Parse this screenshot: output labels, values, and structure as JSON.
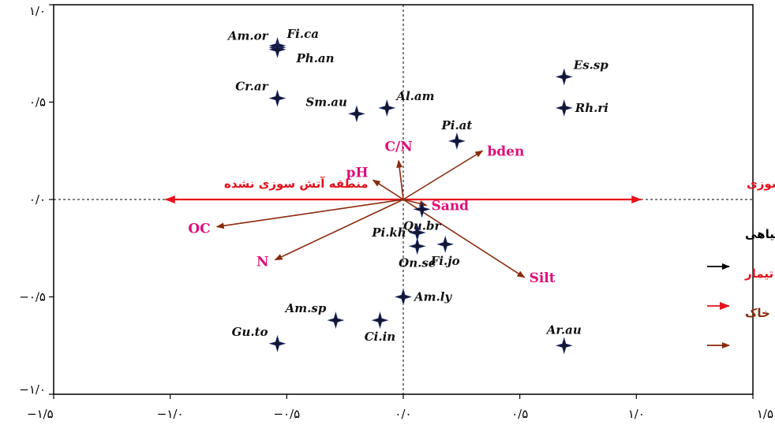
{
  "chart_data": {
    "type": "scatter",
    "subtype": "biplot",
    "title": "",
    "xlabel": "",
    "ylabel": "",
    "xlim": [
      -1.5,
      1.5
    ],
    "ylim": [
      -1.0,
      1.0
    ],
    "grid": false,
    "zero_lines": "dashed",
    "x_ticks": [
      {
        "value": -1.5,
        "label": "−۱/۵"
      },
      {
        "value": -1.0,
        "label": "−۱/۰"
      },
      {
        "value": -0.5,
        "label": "−۰/۵"
      },
      {
        "value": 0.0,
        "label": "۰/۰"
      },
      {
        "value": 0.5,
        "label": "۰/۵"
      },
      {
        "value": 1.0,
        "label": "۱/۰"
      },
      {
        "value": 1.5,
        "label": "۱/۵"
      }
    ],
    "y_ticks": [
      {
        "value": 1.0,
        "label": "۱/۰"
      },
      {
        "value": 0.5,
        "label": "۰/۵"
      },
      {
        "value": 0.0,
        "label": "۰/۰"
      },
      {
        "value": -0.5,
        "label": "−۰/۵"
      },
      {
        "value": -1.0,
        "label": "−۱/۰"
      }
    ],
    "species": [
      {
        "label": "Am.or",
        "x": -0.54,
        "y": 0.78,
        "label_pos": "left-above"
      },
      {
        "label": "Fi.ca",
        "x": -0.54,
        "y": 0.79,
        "label_pos": "right-above"
      },
      {
        "label": "Ph.an",
        "x": -0.54,
        "y": 0.77,
        "label_pos": "right-below"
      },
      {
        "label": "Cr.ar",
        "x": -0.54,
        "y": 0.52,
        "label_pos": "left-above"
      },
      {
        "label": "Sm.au",
        "x": -0.2,
        "y": 0.44,
        "label_pos": "left-above"
      },
      {
        "label": "Al.am",
        "x": -0.07,
        "y": 0.47,
        "label_pos": "right-above"
      },
      {
        "label": "Es.sp",
        "x": 0.69,
        "y": 0.63,
        "label_pos": "right-above"
      },
      {
        "label": "Rh.ri",
        "x": 0.69,
        "y": 0.47,
        "label_pos": "right"
      },
      {
        "label": "Pi.at",
        "x": 0.23,
        "y": 0.3,
        "label_pos": "above"
      },
      {
        "label": "Qu.br",
        "x": 0.08,
        "y": -0.05,
        "label_pos": "below"
      },
      {
        "label": "Pi.kh",
        "x": 0.06,
        "y": -0.17,
        "label_pos": "left"
      },
      {
        "label": "On.se",
        "x": 0.06,
        "y": -0.24,
        "label_pos": "below"
      },
      {
        "label": "Fi.jo",
        "x": 0.18,
        "y": -0.23,
        "label_pos": "below"
      },
      {
        "label": "Am.ly",
        "x": 0.0,
        "y": -0.5,
        "label_pos": "right"
      },
      {
        "label": "Am.sp",
        "x": -0.29,
        "y": -0.62,
        "label_pos": "left-above"
      },
      {
        "label": "Ci.in",
        "x": -0.1,
        "y": -0.62,
        "label_pos": "below"
      },
      {
        "label": "Gu.to",
        "x": -0.54,
        "y": -0.74,
        "label_pos": "left-above"
      },
      {
        "label": "Ar.au",
        "x": 0.69,
        "y": -0.75,
        "label_pos": "above"
      }
    ],
    "soil_vectors": [
      {
        "label": "bden",
        "x": 0.34,
        "y": 0.25,
        "label_pos": "right"
      },
      {
        "label": "C/N",
        "x": -0.02,
        "y": 0.2,
        "label_pos": "above"
      },
      {
        "label": "pH",
        "x": -0.13,
        "y": 0.1,
        "label_pos": "left-above"
      },
      {
        "label": "Sand",
        "x": 0.1,
        "y": -0.03,
        "label_pos": "right"
      },
      {
        "label": "OC",
        "x": -0.8,
        "y": -0.14,
        "label_pos": "left"
      },
      {
        "label": "N",
        "x": -0.55,
        "y": -0.31,
        "label_pos": "left"
      },
      {
        "label": "Silt",
        "x": 0.52,
        "y": -0.4,
        "label_pos": "right"
      }
    ],
    "treatment_vectors": [
      {
        "label": "منطقه آتش سوزی نشده",
        "x": -1.02,
        "y": 0.0
      },
      {
        "label": "منطقه آتش سوزی",
        "x": 1.02,
        "y": 0.0
      }
    ],
    "legend": {
      "position": "right",
      "items": [
        {
          "label": "گونه گیاهی",
          "color": "#000000"
        },
        {
          "label": "تیمار",
          "color": "#e8101d"
        },
        {
          "label": "خصوصیات خاک",
          "color": "#8b2a0c"
        }
      ]
    },
    "colors": {
      "species_marker": "#141633",
      "species_vector": "#000000",
      "treatment_vector": "#e8101d",
      "soil_vector": "#8b2a0c",
      "soil_label": "#e0107a"
    }
  }
}
